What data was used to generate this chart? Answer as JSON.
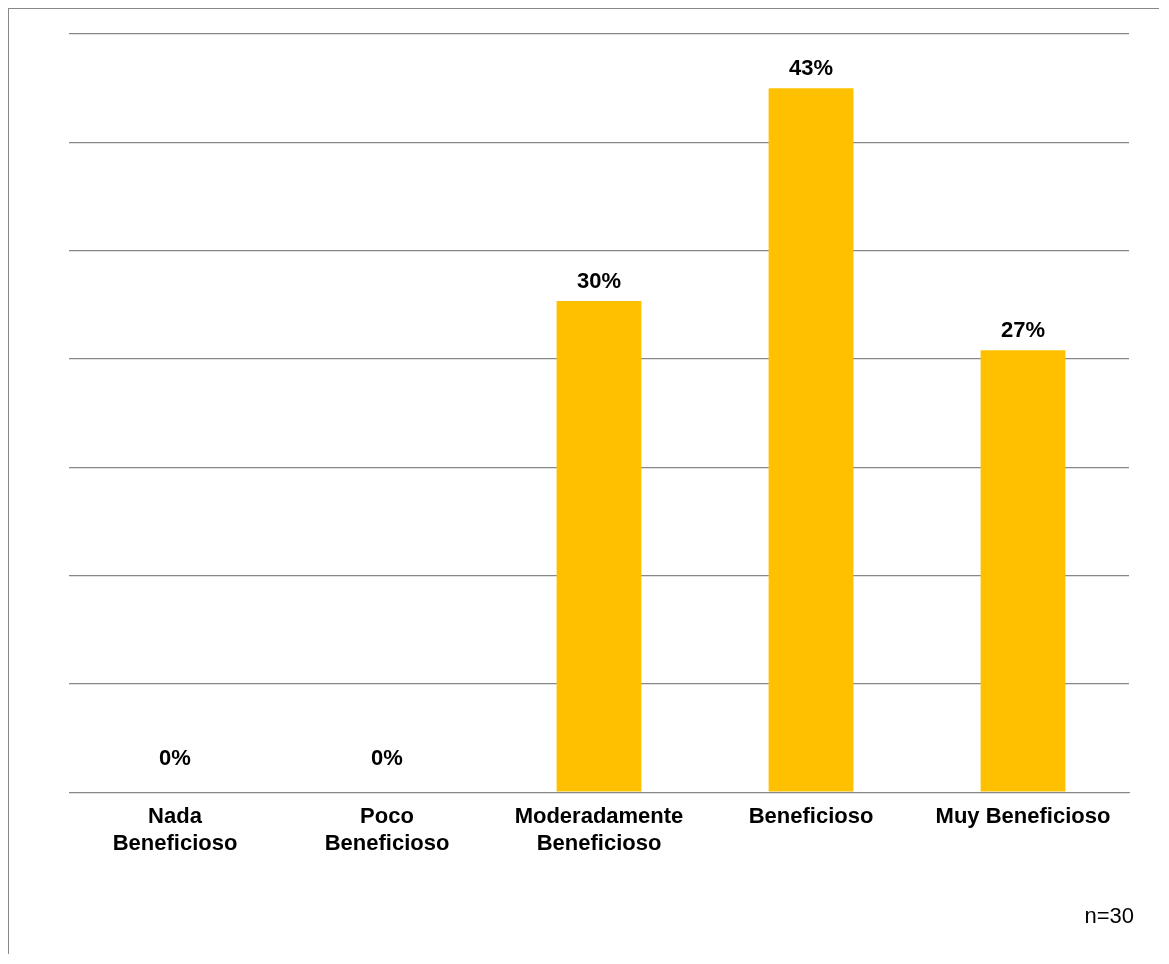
{
  "chart_data": {
    "type": "bar",
    "categories": [
      "Nada Beneficioso",
      "Poco Beneficioso",
      "Moderadamente Beneficioso",
      "Beneficioso",
      "Muy Beneficioso"
    ],
    "values": [
      0,
      0,
      30,
      43,
      27
    ],
    "value_labels": [
      "0%",
      "0%",
      "30%",
      "43%",
      "27%"
    ],
    "color": "#ffc000",
    "grid": "y",
    "tick_labels": "x",
    "legend": false,
    "annotations": [
      "n=30"
    ]
  }
}
